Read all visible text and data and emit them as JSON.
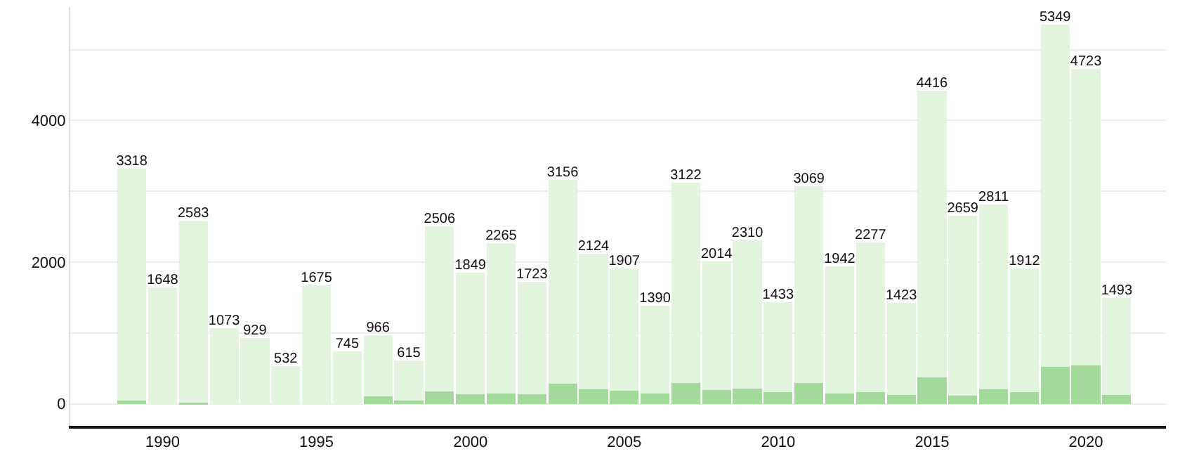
{
  "chart_data": {
    "type": "bar",
    "stacked": true,
    "categories": [
      null,
      "1990",
      null,
      null,
      null,
      null,
      "1995",
      null,
      null,
      null,
      null,
      "2000",
      null,
      null,
      null,
      null,
      "2005",
      null,
      null,
      null,
      null,
      "2010",
      null,
      null,
      null,
      null,
      "2015",
      null,
      null,
      null,
      null,
      "2020",
      null
    ],
    "series": [
      {
        "color": "#a3d99a",
        "values": [
          50,
          null,
          20,
          0,
          0,
          0,
          null,
          null,
          110,
          50,
          180,
          140,
          145,
          140,
          290,
          205,
          185,
          150,
          295,
          195,
          220,
          165,
          295,
          145,
          170,
          130,
          370,
          115,
          205,
          165,
          520,
          540,
          130
        ]
      },
      {
        "color": "#e3f4df",
        "values": [
          3268,
          1648,
          2563,
          1073,
          929,
          532,
          1675,
          745,
          856,
          565,
          2326,
          1709,
          2120,
          1583,
          2866,
          1919,
          1722,
          1240,
          2827,
          1819,
          2090,
          1268,
          2774,
          1797,
          2107,
          1293,
          4046,
          2544,
          2606,
          1747,
          4829,
          4183,
          1363
        ]
      }
    ],
    "totals": [
      "3318",
      "1648",
      "2583",
      "1073",
      "929",
      "532",
      "1675",
      "745",
      "966",
      "615",
      "2506",
      "1849",
      "2265",
      "1723",
      "3156",
      "2124",
      "1907",
      "1390",
      "3122",
      "2014",
      "2310",
      "1433",
      "3069",
      "1942",
      "2277",
      "1423",
      "4416",
      "2659",
      "2811",
      "1912",
      "5349",
      "4723",
      "1493"
    ],
    "ylim": [
      -310,
      5600
    ],
    "yticks": [
      0,
      {
        "value": 1000,
        "label": null
      },
      2000,
      {
        "value": 3000,
        "label": null
      },
      4000,
      {
        "value": 5000,
        "label": null
      }
    ],
    "grid": "y"
  }
}
